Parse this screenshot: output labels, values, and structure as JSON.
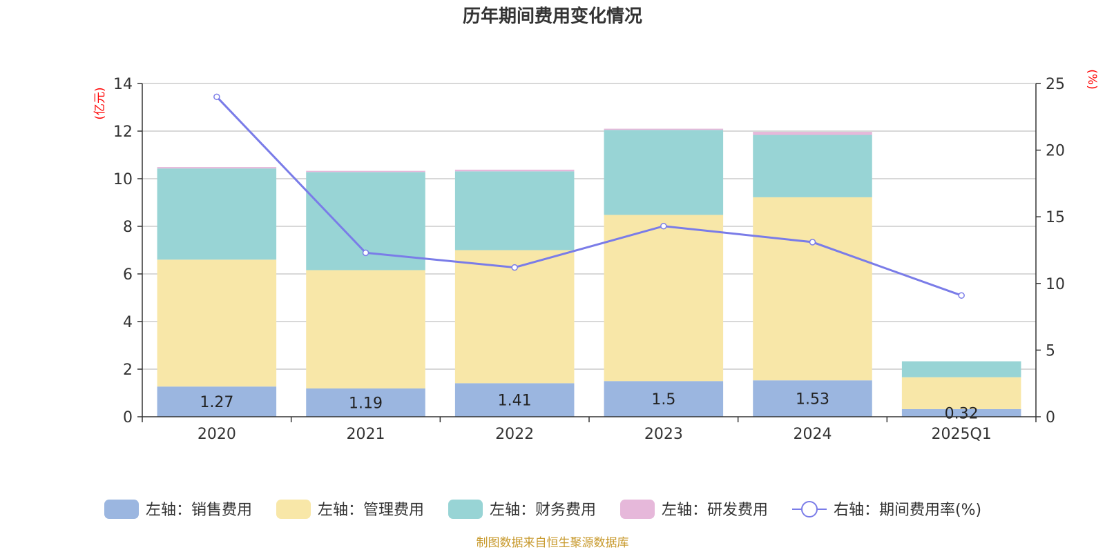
{
  "chart_data": {
    "type": "bar",
    "title": "历年期间费用变化情况",
    "categories": [
      "2020",
      "2021",
      "2022",
      "2023",
      "2024",
      "2025Q1"
    ],
    "left_axis": {
      "unit": "(亿元)",
      "ylim": [
        0,
        14
      ],
      "ticks": [
        "0",
        "2",
        "4",
        "6",
        "8",
        "10",
        "12",
        "14"
      ]
    },
    "right_axis": {
      "unit": "(%)",
      "ylim": [
        0,
        25
      ],
      "ticks": [
        "0",
        "5",
        "10",
        "15",
        "20",
        "25"
      ]
    },
    "grid": true,
    "series": [
      {
        "name": "左轴：销售费用",
        "type": "bar",
        "stack": true,
        "axis": "left",
        "color": "#9bb6e0",
        "values": [
          1.27,
          1.19,
          1.41,
          1.5,
          1.53,
          0.32
        ],
        "labels": [
          "1.27",
          "1.19",
          "1.41",
          "1.5",
          "1.53",
          "0.32"
        ]
      },
      {
        "name": "左轴：管理费用",
        "type": "bar",
        "stack": true,
        "axis": "left",
        "color": "#f8e7a8",
        "values": [
          5.33,
          4.97,
          5.59,
          6.98,
          7.69,
          1.34
        ]
      },
      {
        "name": "左轴：财务费用",
        "type": "bar",
        "stack": true,
        "axis": "left",
        "color": "#98d4d5",
        "values": [
          3.83,
          4.12,
          3.31,
          3.57,
          2.62,
          0.67
        ]
      },
      {
        "name": "左轴：研发费用",
        "type": "bar",
        "stack": true,
        "axis": "left",
        "color": "#e6b8da",
        "values": [
          0.06,
          0.05,
          0.07,
          0.05,
          0.13,
          0.0
        ]
      },
      {
        "name": "右轴：期间费用率(%)",
        "type": "line",
        "axis": "right",
        "color": "#7a7ce8",
        "values": [
          24.0,
          12.3,
          11.2,
          14.3,
          13.1,
          9.1
        ]
      }
    ],
    "legend_position": "bottom"
  },
  "source_note": "制图数据来自恒生聚源数据库"
}
